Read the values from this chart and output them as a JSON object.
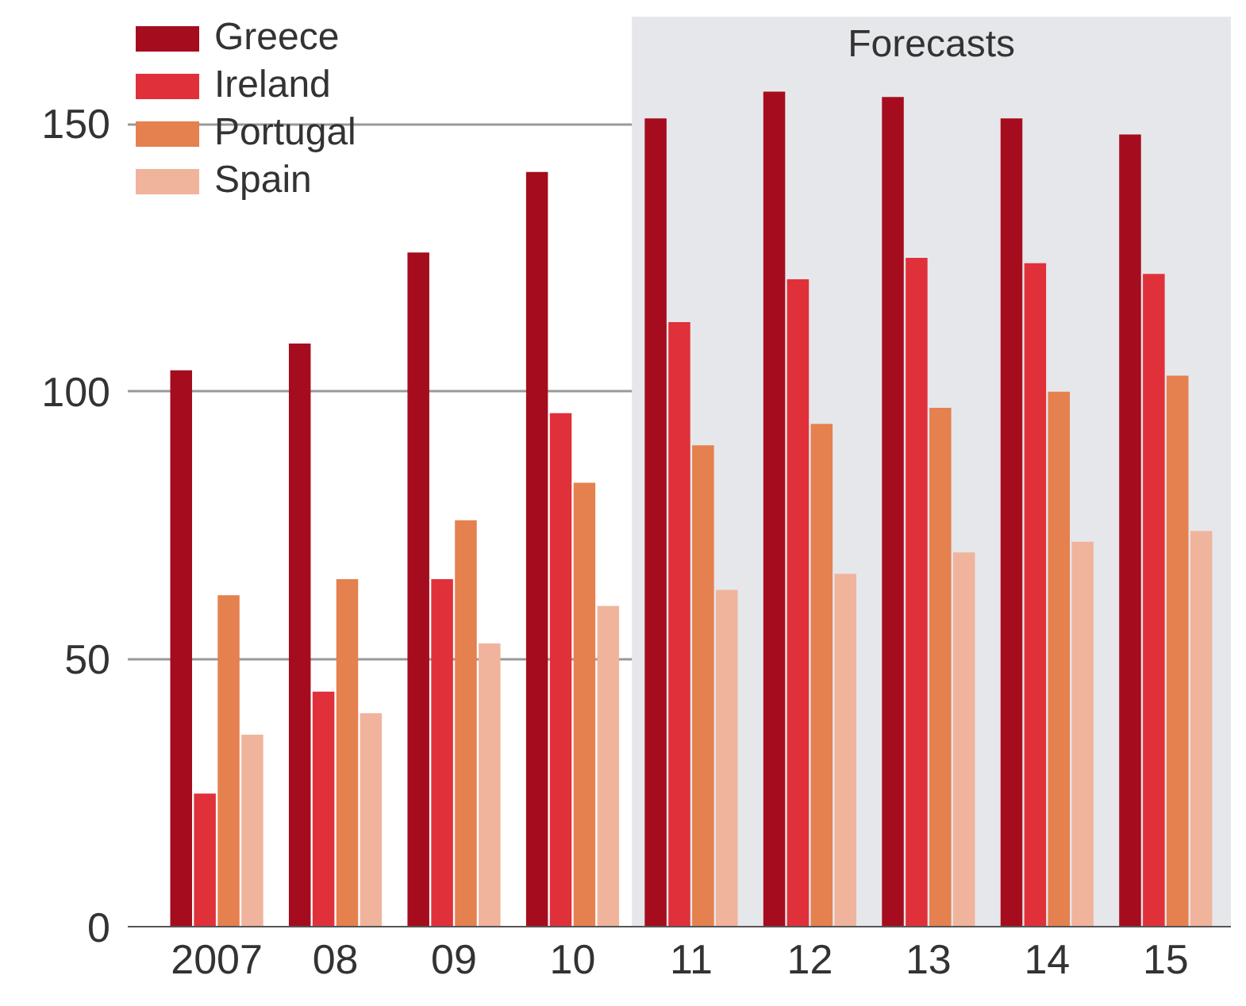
{
  "chart_data": {
    "type": "bar",
    "categories": [
      "2007",
      "08",
      "09",
      "10",
      "11",
      "12",
      "13",
      "14",
      "15"
    ],
    "series": [
      {
        "name": "Greece",
        "color": "#a50d1e",
        "values": [
          104,
          109,
          126,
          141,
          151,
          156,
          155,
          151,
          148
        ]
      },
      {
        "name": "Ireland",
        "color": "#e0303a",
        "values": [
          25,
          44,
          65,
          96,
          113,
          121,
          125,
          124,
          122
        ]
      },
      {
        "name": "Portugal",
        "color": "#e5804f",
        "values": [
          62,
          65,
          76,
          83,
          90,
          94,
          97,
          100,
          103
        ]
      },
      {
        "name": "Spain",
        "color": "#f0b49c",
        "values": [
          36,
          40,
          53,
          60,
          63,
          66,
          70,
          72,
          74
        ]
      }
    ],
    "ylim": [
      0,
      170
    ],
    "yticks": [
      0,
      50,
      100,
      150
    ],
    "grid": "y",
    "legend": "top left",
    "bands": [
      {
        "axis": "x",
        "from": "11",
        "to": "15",
        "label": "Forecasts",
        "color": "#e6e7ea"
      }
    ]
  }
}
